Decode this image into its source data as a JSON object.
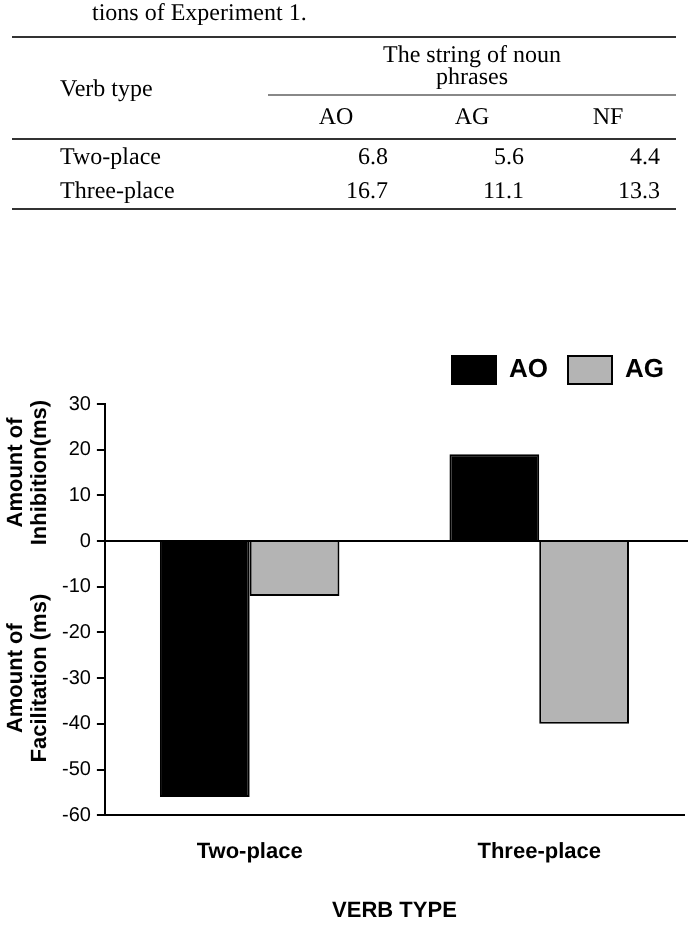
{
  "chart_data": [
    {
      "type": "heatmap",
      "title": "tions of Experiment 1.",
      "ylabel": "Verb type",
      "xlabel": "The string of noun phrases",
      "categories": [
        "AO",
        "AG",
        "NF"
      ],
      "y_categories": [
        "Two-place",
        "Three-place"
      ],
      "cells": [
        [
          6.8,
          5.6,
          4.4
        ],
        [
          16.7,
          11.1,
          13.3
        ]
      ],
      "data_labels": true
    },
    {
      "type": "bar",
      "categories": [
        "Two-place",
        "Three-place"
      ],
      "series": [
        {
          "name": "AO",
          "color": "#000000",
          "values": [
            -56,
            19
          ]
        },
        {
          "name": "AG",
          "color": "#b4b4b4",
          "values": [
            -12,
            -40
          ]
        }
      ],
      "ylim": [
        -60,
        30
      ],
      "yticks": [
        -60,
        -50,
        -40,
        -30,
        -20,
        -10,
        0,
        10,
        20,
        30
      ],
      "ylabel": "Amount of Facilitation (ms)",
      "annotations": [
        "Amount of Inhibition(ms)"
      ],
      "xlabel": "VERB TYPE",
      "ref_lines": [
        {
          "axis": "y",
          "value": 0
        }
      ],
      "grid": false,
      "legend": "top right"
    }
  ]
}
